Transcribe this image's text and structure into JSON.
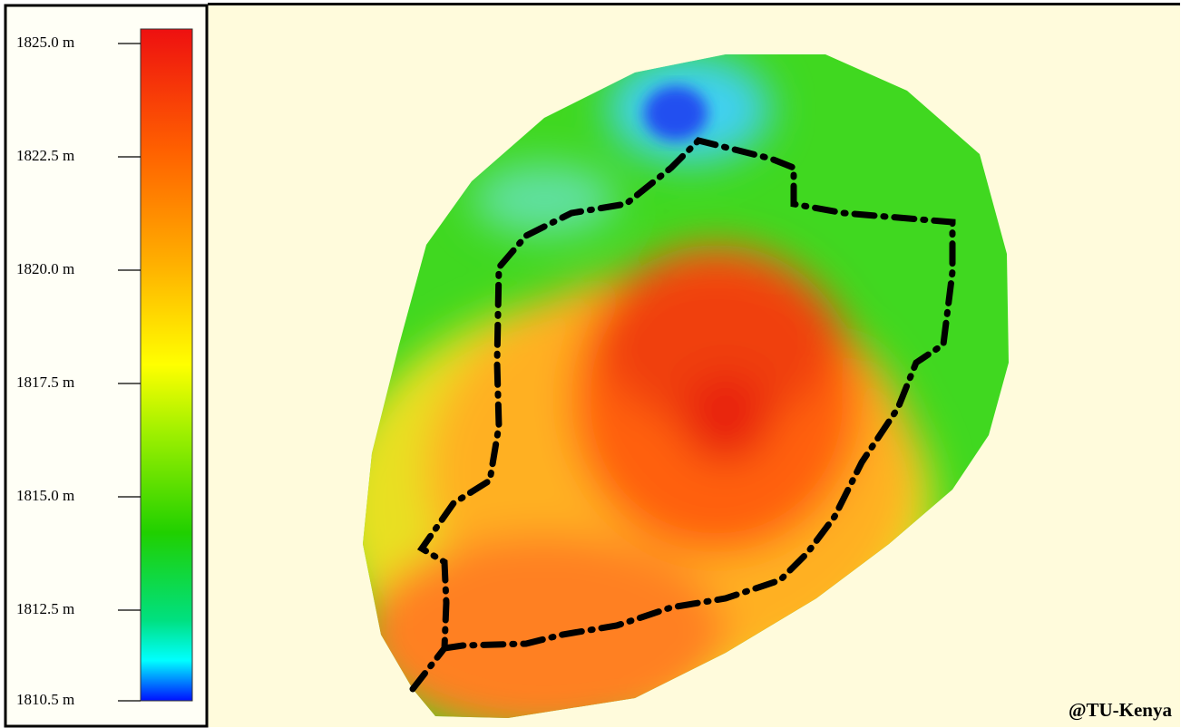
{
  "legend": {
    "ticks": [
      {
        "value": 1825.0,
        "label": "1825.0 m"
      },
      {
        "value": 1822.5,
        "label": "1822.5 m"
      },
      {
        "value": 1820.0,
        "label": "1820.0 m"
      },
      {
        "value": 1817.5,
        "label": "1817.5 m"
      },
      {
        "value": 1815.0,
        "label": "1815.0 m"
      },
      {
        "value": 1812.5,
        "label": "1812.5 m"
      },
      {
        "value": 1810.5,
        "label": "1810.5 m"
      }
    ]
  },
  "credit": "@TU-Kenya"
}
